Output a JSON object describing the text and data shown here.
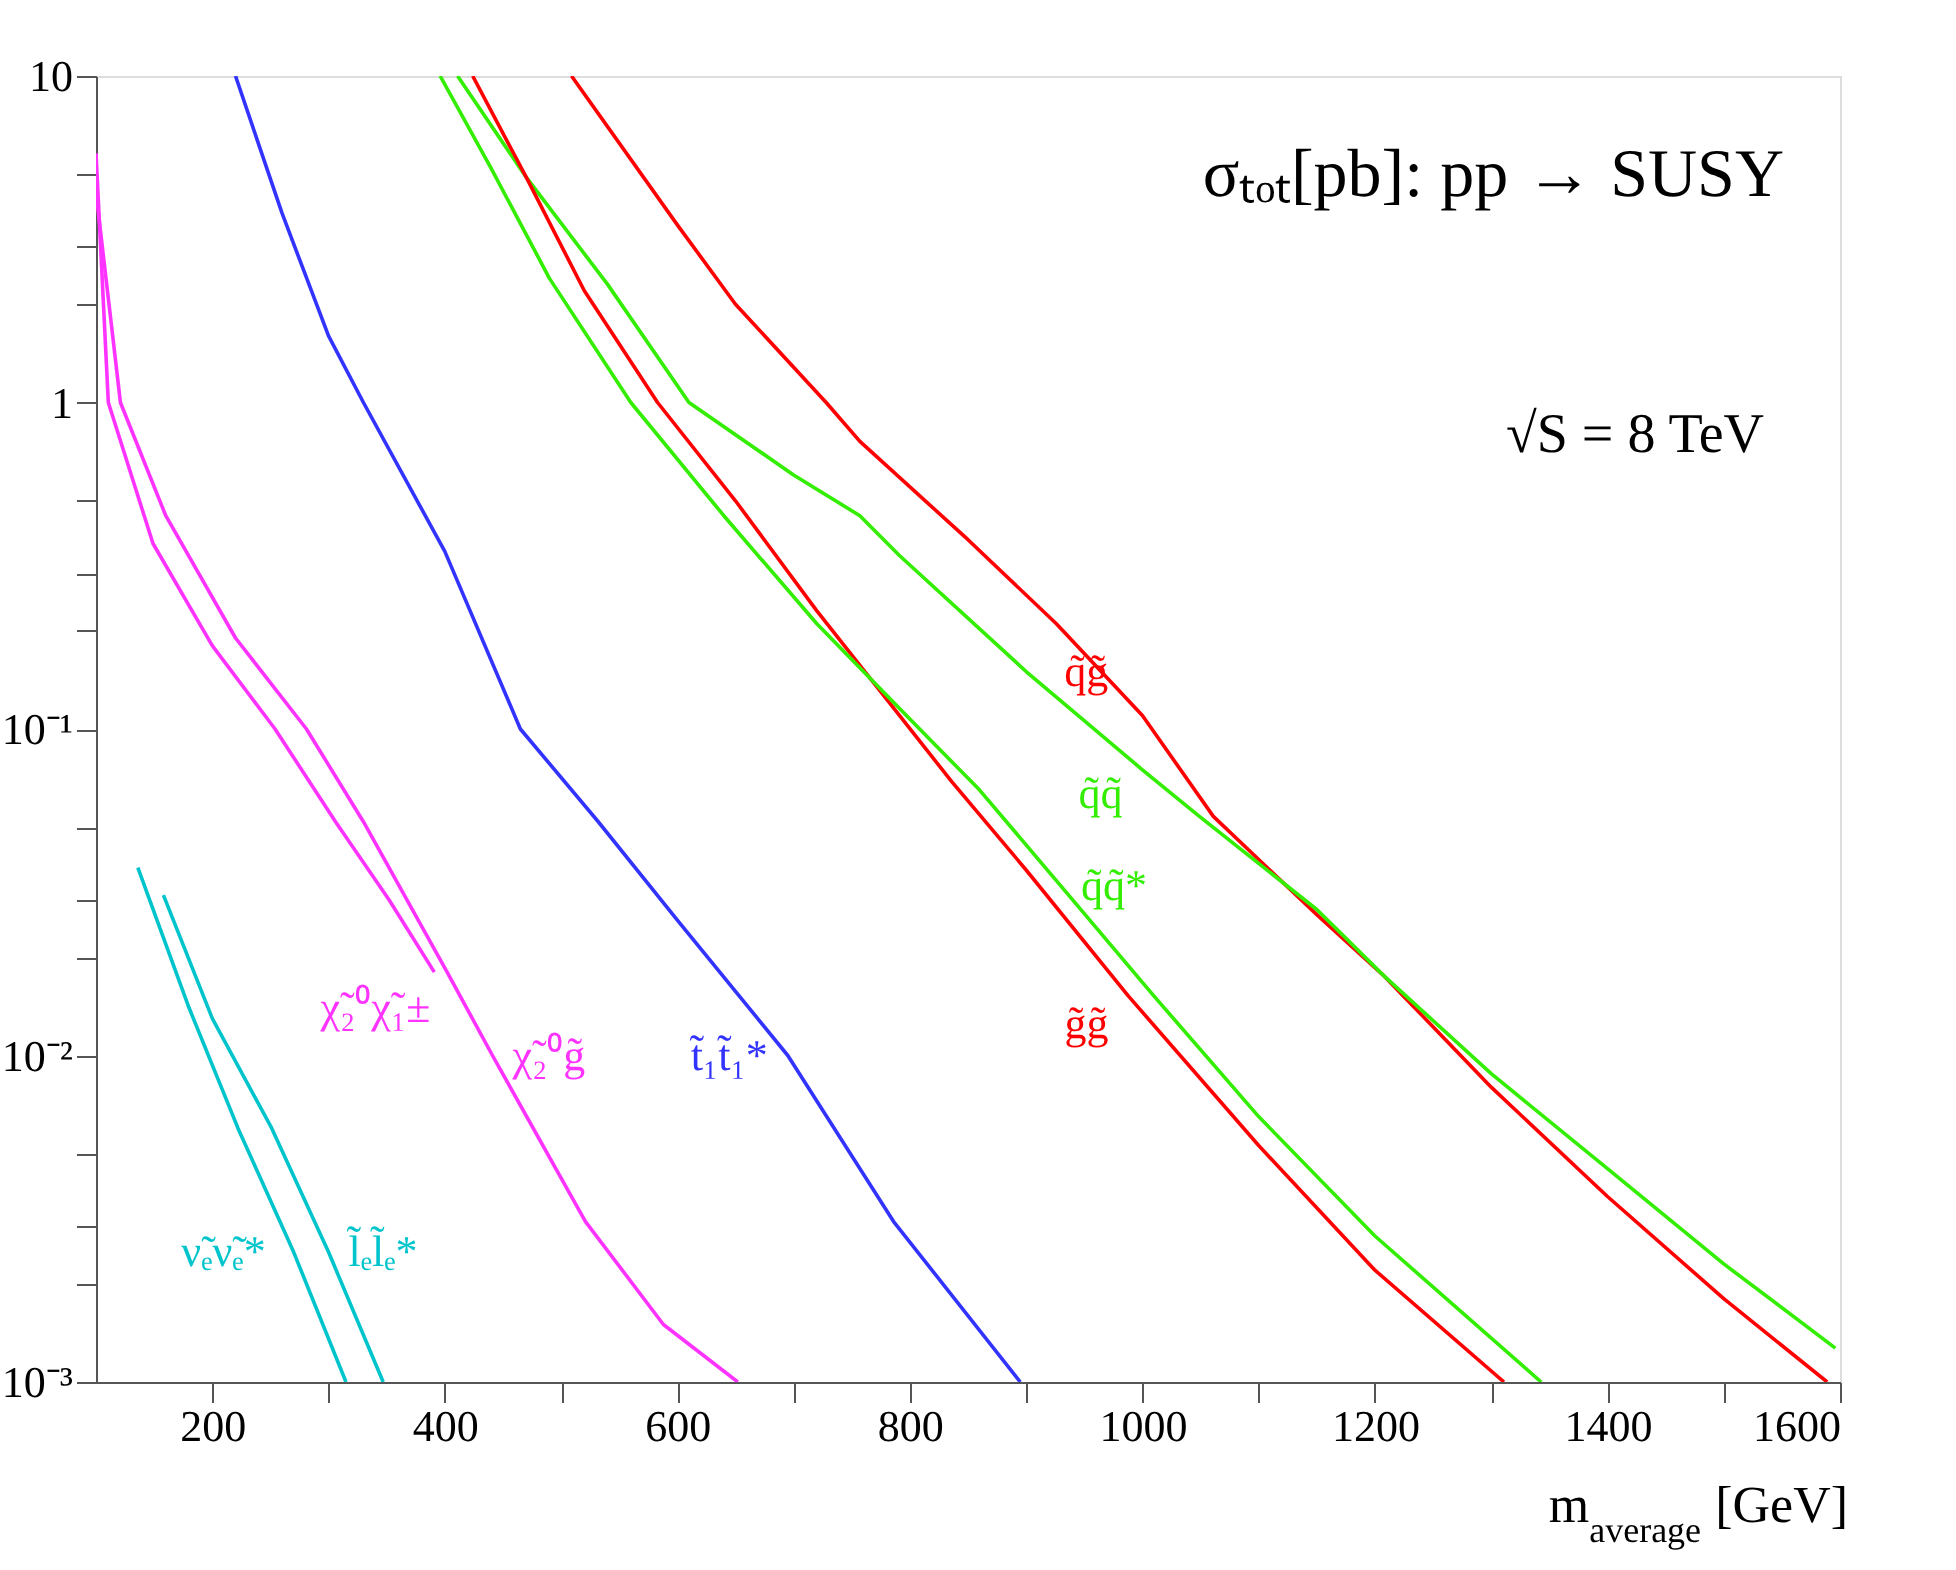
{
  "chart_data": {
    "type": "line",
    "title": "σₜₒₜ[pb]: pp → SUSY",
    "xlabel": "m$_{average}$ [GeV]",
    "log": "y",
    "grid": false,
    "marker": "none",
    "line_style": "solid",
    "legend": false,
    "xlim": [
      100,
      1600
    ],
    "ylim": [
      0.001,
      10
    ],
    "xticks": [
      200,
      {
        "value": 300,
        "label": null
      },
      400,
      {
        "value": 500,
        "label": null
      },
      600,
      {
        "value": 700,
        "label": null
      },
      800,
      {
        "value": 900,
        "label": null
      },
      1000,
      {
        "value": 1100,
        "label": null
      },
      1200,
      {
        "value": 1300,
        "label": null
      },
      1400,
      {
        "value": 1500,
        "label": null
      },
      1600
    ],
    "yticks": [
      {
        "value": 0.001,
        "label": "10⁻³"
      },
      {
        "value": 0.002,
        "label": null
      },
      {
        "value": 0.003,
        "label": null
      },
      {
        "value": 0.005,
        "label": null
      },
      {
        "value": 0.01,
        "label": "10⁻²"
      },
      {
        "value": 0.02,
        "label": null
      },
      {
        "value": 0.03,
        "label": null
      },
      {
        "value": 0.05,
        "label": null
      },
      {
        "value": 0.1,
        "label": "10⁻¹"
      },
      {
        "value": 0.2,
        "label": null
      },
      {
        "value": 0.3,
        "label": null
      },
      {
        "value": 0.5,
        "label": null
      },
      1,
      {
        "value": 2,
        "label": null
      },
      {
        "value": 3,
        "label": null
      },
      {
        "value": 5,
        "label": null
      },
      10
    ],
    "series": [
      {
        "name": "q̃g̃",
        "color": "#ff0000",
        "x": [
          509,
          600,
          650,
          728,
          757,
          850,
          926,
          1000,
          1061,
          1150,
          1208,
          1300,
          1400,
          1500,
          1589
        ],
        "values": [
          10,
          3.5,
          2.0,
          1.0,
          0.76,
          0.38,
          0.21,
          0.11,
          0.054,
          0.027,
          0.0175,
          0.008,
          0.0037,
          0.0018,
          0.001
        ]
      },
      {
        "name": "q̃q̃",
        "color": "#33ee00",
        "x": [
          411,
          470,
          540,
          610,
          700,
          757,
          791,
          900,
          1000,
          1049,
          1150,
          1208,
          1300,
          1400,
          1500,
          1596
        ],
        "values": [
          10,
          4.9,
          2.3,
          1.0,
          0.6,
          0.45,
          0.34,
          0.15,
          0.075,
          0.054,
          0.028,
          0.0175,
          0.0088,
          0.0045,
          0.0023,
          0.00127
        ]
      },
      {
        "name": "g̃g̃",
        "color": "#ff0000",
        "x": [
          424,
          470,
          520,
          583,
          650,
          720,
          791,
          836,
          900,
          988,
          1100,
          1200,
          1311
        ],
        "values": [
          10,
          4.9,
          2.2,
          1.0,
          0.5,
          0.23,
          0.11,
          0.069,
          0.037,
          0.0152,
          0.0053,
          0.0022,
          0.001
        ]
      },
      {
        "name": "q̃q̃*",
        "color": "#33ee00",
        "x": [
          396,
          440,
          490,
          560,
          640,
          720,
          797,
          860,
          930,
          1010,
          1100,
          1200,
          1343
        ],
        "values": [
          10,
          5.2,
          2.4,
          1.0,
          0.45,
          0.21,
          0.11,
          0.065,
          0.033,
          0.0152,
          0.0065,
          0.0028,
          0.001
        ]
      },
      {
        "name": "t̃₁t̃₁*",
        "color": "#3333ff",
        "x": [
          220,
          260,
          300,
          330,
          400,
          465,
          532,
          600,
          695,
          786,
          895
        ],
        "values": [
          10,
          3.8,
          1.6,
          1.0,
          0.35,
          0.1,
          0.052,
          0.026,
          0.01,
          0.0031,
          0.001
        ]
      },
      {
        "name": "χ̃₂⁰χ̃₁±",
        "color": "#ff33ff",
        "x": [
          100,
          110.6,
          149,
          200,
          254,
          306,
          352,
          391
        ],
        "values": [
          5.8,
          1.0,
          0.37,
          0.18,
          0.1,
          0.052,
          0.03,
          0.018
        ]
      },
      {
        "name": "χ̃₂⁰g̃",
        "color": "#ff33ff",
        "x": [
          100,
          121,
          160,
          220,
          281,
          330,
          402,
          441,
          521,
          588,
          652
        ],
        "values": [
          4.4,
          1.0,
          0.45,
          0.19,
          0.1,
          0.052,
          0.018,
          0.01,
          0.0031,
          0.0015,
          0.001
        ]
      },
      {
        "name": "ν̃ₑν̃ₑ*",
        "color": "#00c4cc",
        "x": [
          136,
          180,
          222,
          270,
          315
        ],
        "values": [
          0.0376,
          0.014,
          0.006,
          0.0025,
          0.001
        ]
      },
      {
        "name": "l̃ₑl̃ₑ*",
        "color": "#00c4cc",
        "x": [
          158,
          200,
          251,
          300,
          347
        ],
        "values": [
          0.031,
          0.013,
          0.006,
          0.0025,
          0.001
        ]
      }
    ],
    "annotations": [
      "√S = 8 TeV"
    ]
  }
}
